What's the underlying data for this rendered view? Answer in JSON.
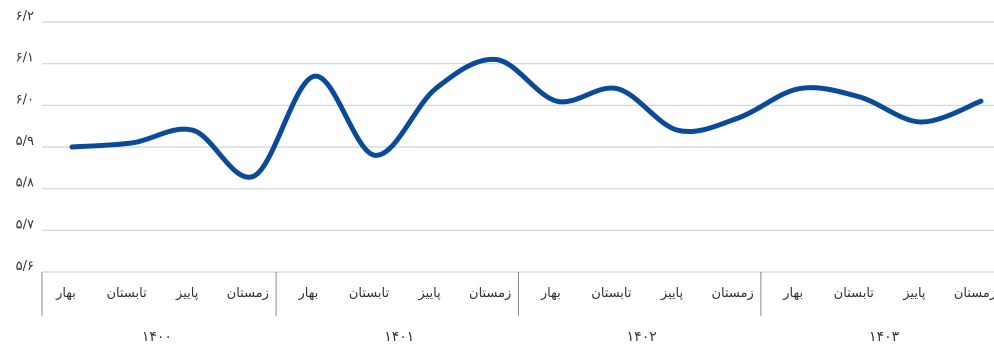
{
  "chart_data": {
    "type": "line",
    "title": "",
    "xlabel": "",
    "ylabel": "",
    "ylim": [
      5.6,
      6.2
    ],
    "yticks": [
      {
        "value": 6.2,
        "label": "۶/۲"
      },
      {
        "value": 6.1,
        "label": "۶/۱"
      },
      {
        "value": 6.0,
        "label": "۶/۰"
      },
      {
        "value": 5.9,
        "label": "۵/۹"
      },
      {
        "value": 5.8,
        "label": "۵/۸"
      },
      {
        "value": 5.7,
        "label": "۵/۷"
      },
      {
        "value": 5.6,
        "label": "۵/۶"
      }
    ],
    "grid": true,
    "years": [
      "۱۴۰۰",
      "۱۴۰۱",
      "۱۴۰۲",
      "۱۴۰۳"
    ],
    "categories": [
      {
        "season": "بهار",
        "year": "۱۴۰۰"
      },
      {
        "season": "تابستان",
        "year": "۱۴۰۰"
      },
      {
        "season": "پاییز",
        "year": "۱۴۰۰"
      },
      {
        "season": "زمستان",
        "year": "۱۴۰۰"
      },
      {
        "season": "بهار",
        "year": "۱۴۰۱"
      },
      {
        "season": "تابستان",
        "year": "۱۴۰۱"
      },
      {
        "season": "پاییز",
        "year": "۱۴۰۱"
      },
      {
        "season": "زمستان",
        "year": "۱۴۰۱"
      },
      {
        "season": "بهار",
        "year": "۱۴۰۲"
      },
      {
        "season": "تابستان",
        "year": "۱۴۰۲"
      },
      {
        "season": "پاییز",
        "year": "۱۴۰۲"
      },
      {
        "season": "زمستان",
        "year": "۱۴۰۲"
      },
      {
        "season": "بهار",
        "year": "۱۴۰۳"
      },
      {
        "season": "تابستان",
        "year": "۱۴۰۳"
      },
      {
        "season": "پاییز",
        "year": "۱۴۰۳"
      },
      {
        "season": "زمستان",
        "year": "۱۴۰۳"
      }
    ],
    "series": [
      {
        "values": [
          5.9,
          5.91,
          5.94,
          5.83,
          6.07,
          5.88,
          6.04,
          6.11,
          6.01,
          6.04,
          5.94,
          5.97,
          6.04,
          6.02,
          5.96,
          6.01
        ]
      }
    ],
    "colors": {
      "line": "#0b4a9a",
      "grid": "#cfd3d8",
      "axis": "#888888",
      "text": "#333333"
    }
  }
}
